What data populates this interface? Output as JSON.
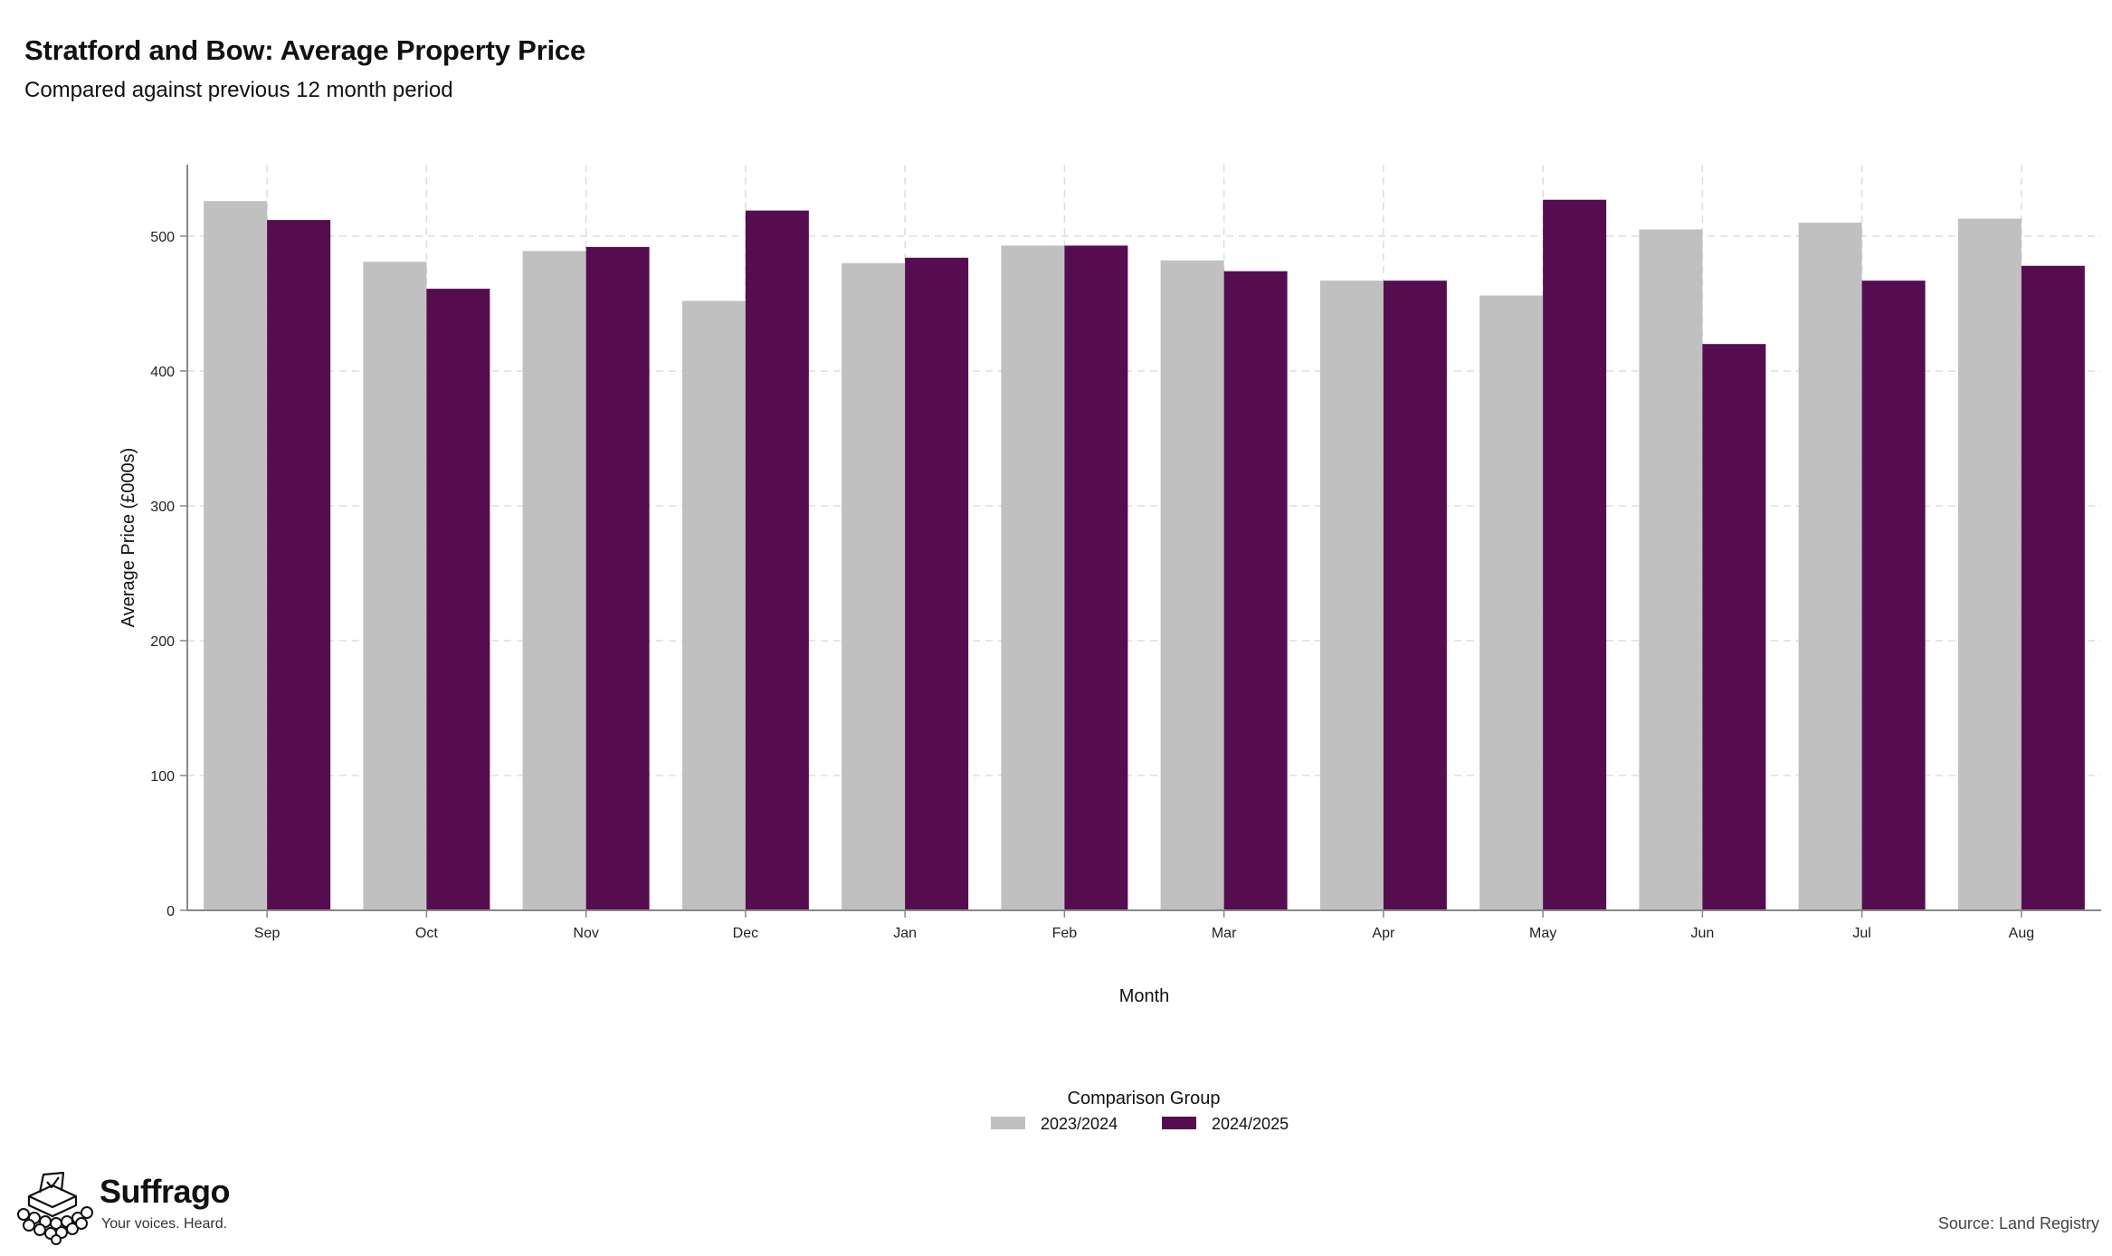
{
  "header": {
    "title": "Stratford and Bow: Average Property Price",
    "subtitle": "Compared against previous 12 month period"
  },
  "footer": {
    "brand_name": "Suffrago",
    "brand_tagline": "Your voices. Heard.",
    "logo_icon": "ballot-box-crowd-icon",
    "source": "Source: Land Registry"
  },
  "colors": {
    "series_2023_2024": "#C0C0C0",
    "series_2024_2025": "#560D50",
    "grid": "#DDDDDD",
    "axis": "#888888"
  },
  "chart_data": {
    "type": "bar",
    "title": "Stratford and Bow: Average Property Price",
    "subtitle": "Compared against previous 12 month period",
    "xlabel": "Month",
    "ylabel": "Average Price (£000s)",
    "categories": [
      "Sep",
      "Oct",
      "Nov",
      "Dec",
      "Jan",
      "Feb",
      "Mar",
      "Apr",
      "May",
      "Jun",
      "Jul",
      "Aug"
    ],
    "ylim": [
      0,
      553
    ],
    "yticks": [
      0,
      100,
      200,
      300,
      400,
      500
    ],
    "grid": true,
    "legend_title": "Comparison Group",
    "legend_position": "bottom",
    "series": [
      {
        "name": "2023/2024",
        "color": "#C0C0C0",
        "values": [
          526,
          481,
          489,
          452,
          480,
          493,
          482,
          467,
          456,
          505,
          510,
          513
        ]
      },
      {
        "name": "2024/2025",
        "color": "#560D50",
        "values": [
          512,
          461,
          492,
          519,
          484,
          493,
          474,
          467,
          527,
          420,
          467,
          478
        ]
      }
    ]
  }
}
